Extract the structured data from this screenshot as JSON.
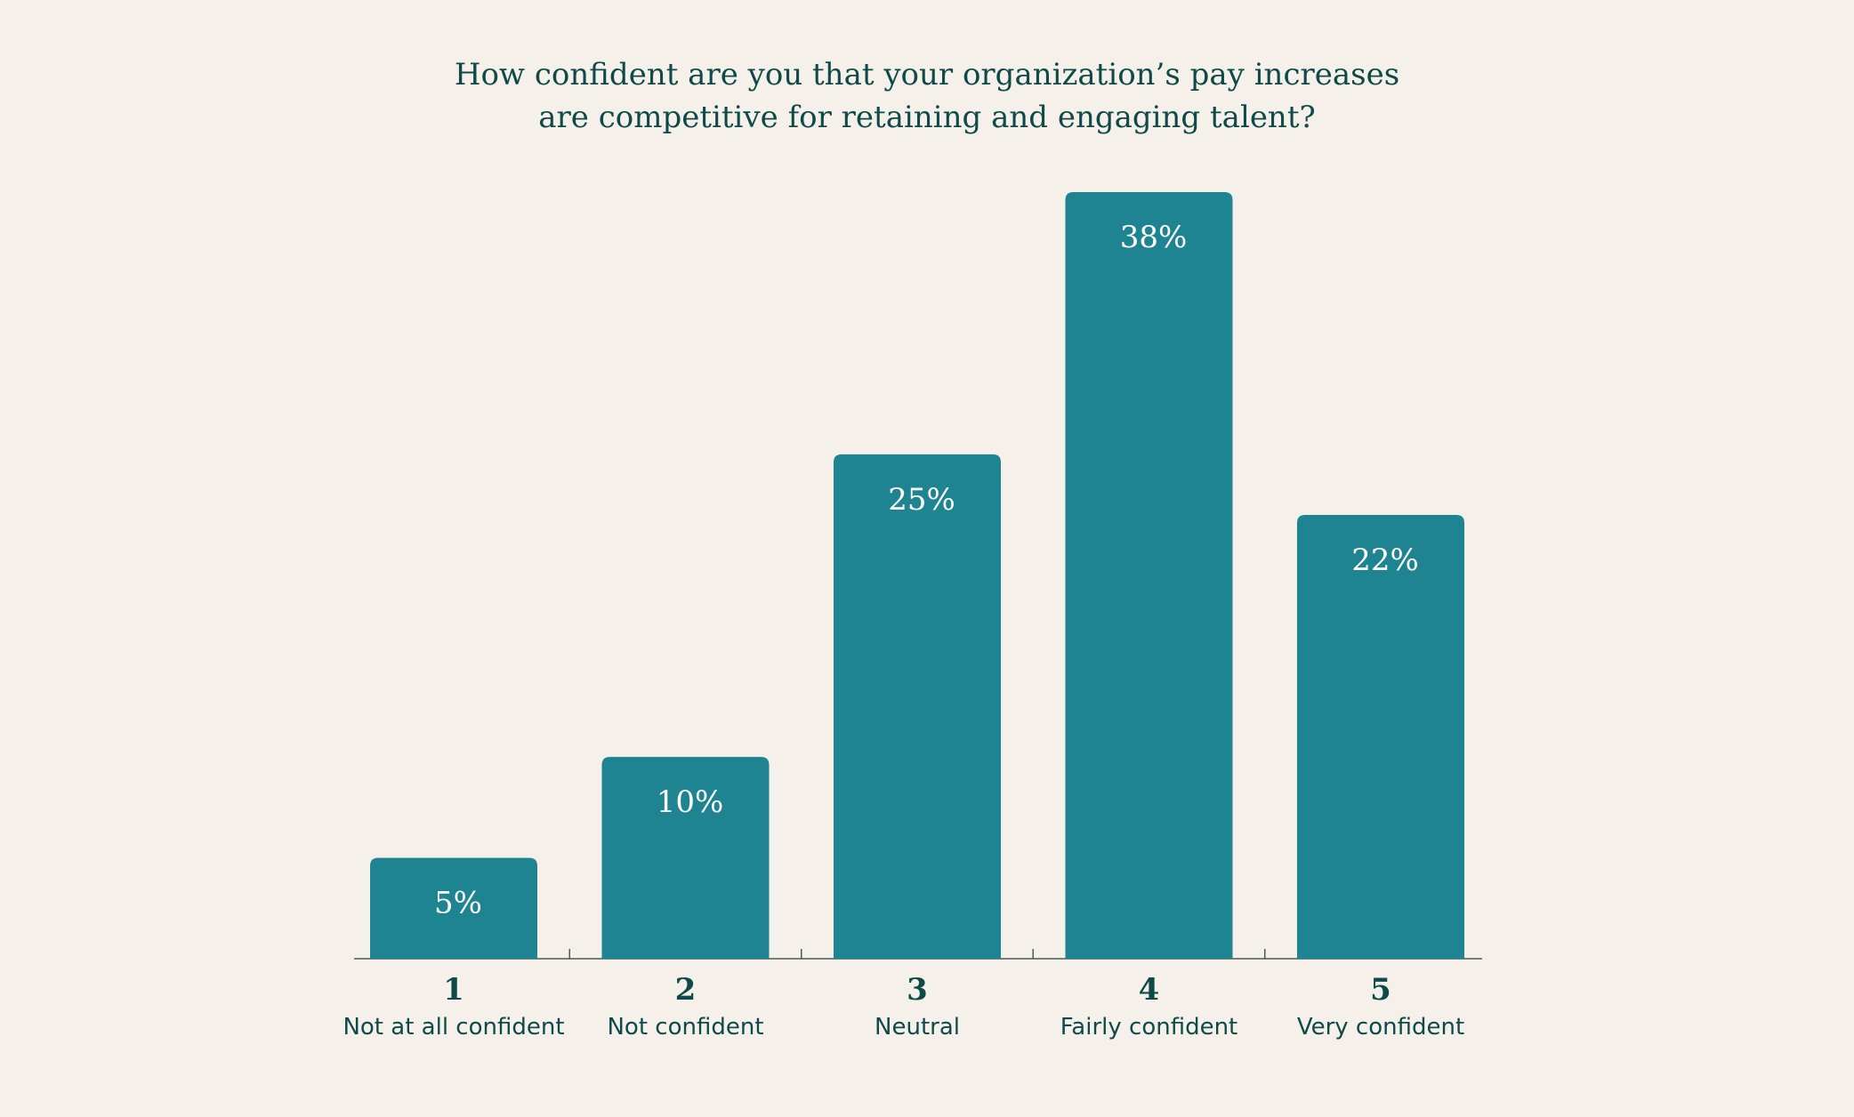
{
  "chart_data": {
    "type": "bar",
    "title_lines": [
      "How confident are you that your organization’s pay increases",
      "are competitive for retaining and engaging talent?"
    ],
    "categories": [
      "1",
      "2",
      "3",
      "4",
      "5"
    ],
    "category_labels": [
      "Not at all confident",
      "Not confident",
      "Neutral",
      "Fairly confident",
      "Very confident"
    ],
    "values": [
      5,
      10,
      25,
      38,
      22
    ],
    "value_labels": [
      "5%",
      "10%",
      "25%",
      "38%",
      "22%"
    ],
    "unit": "%",
    "ylim": [
      0,
      38
    ],
    "grid": false,
    "bar_color": "#1e8491",
    "text_color": "#0f4a48",
    "background": "#f5f1ea"
  }
}
